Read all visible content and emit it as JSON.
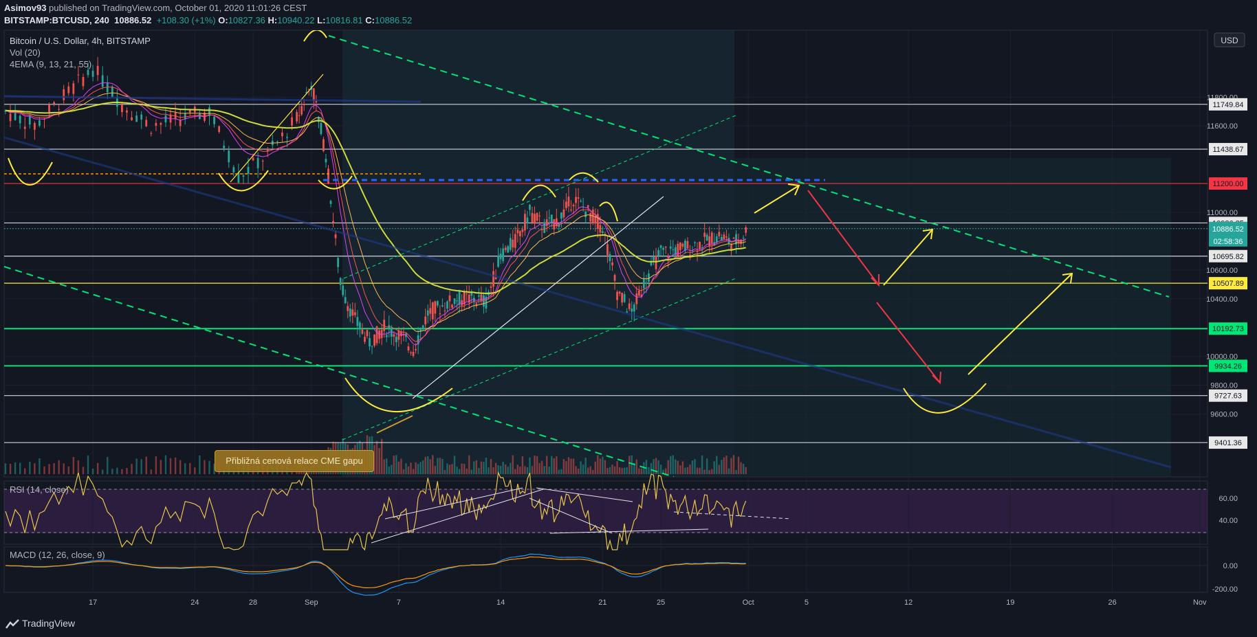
{
  "header": {
    "author": "Asimov93",
    "published_text": "published on TradingView.com, October 01, 2020 11:01:26 CEST",
    "symbol": "BITSTAMP:BTCUSD, 240",
    "last": "10886.52",
    "change": "+108.30 (+1%)",
    "o_label": "O:",
    "o": "10827.36",
    "h_label": "H:",
    "h": "10940.22",
    "l_label": "L:",
    "l": "10816.81",
    "c_label": "C:",
    "c": "10886.52"
  },
  "legend": {
    "title": "Bitcoin / U.S. Dollar, 4h, BITSTAMP",
    "vol": "Vol (20)",
    "ema": "4EMA (9, 13, 21, 55)"
  },
  "currency_button": "USD",
  "rsi_label": "RSI (14, close)",
  "macd_label": "MACD (12, 26, close, 9)",
  "cme_note": "Přibližná cenová relace CME gapu",
  "footer": "TradingView",
  "colors": {
    "bg": "#131722",
    "up": "#26a69a",
    "down": "#ef5350",
    "support": "#00e676",
    "resistance": "#f23645",
    "yellow": "#ffeb3b"
  },
  "chart_data": {
    "type": "line",
    "title": "Bitcoin / U.S. Dollar, 4h, BITSTAMP",
    "x_ticks": [
      "17",
      "24",
      "28",
      "Sep",
      "7",
      "14",
      "21",
      "25",
      "Oct",
      "5",
      "12",
      "19",
      "26",
      "Nov"
    ],
    "y_ticks": [
      9600,
      9800,
      10000,
      10400,
      10600,
      11000,
      11600,
      11800
    ],
    "ylim": [
      9380,
      12400
    ],
    "series": [
      {
        "x": [
          "Aug 11",
          "Aug 13",
          "Aug 15",
          "Aug 17",
          "Aug 19",
          "Aug 21",
          "Aug 23",
          "Aug 25",
          "Aug 27",
          "Aug 29",
          "Aug 31",
          "Sep 1",
          "Sep 2",
          "Sep 3",
          "Sep 4",
          "Sep 5",
          "Sep 6",
          "Sep 7",
          "Sep 8",
          "Sep 9",
          "Sep 10",
          "Sep 11",
          "Sep 12",
          "Sep 13",
          "Sep 14",
          "Sep 15",
          "Sep 16",
          "Sep 17",
          "Sep 18",
          "Sep 19",
          "Sep 20",
          "Sep 21",
          "Sep 22",
          "Sep 23",
          "Sep 24",
          "Sep 25",
          "Sep 26",
          "Sep 27",
          "Sep 28",
          "Sep 29",
          "Sep 30",
          "Oct 1"
        ],
        "values": [
          11700,
          11600,
          11800,
          12000,
          11750,
          11600,
          11650,
          11700,
          11250,
          11400,
          11650,
          11900,
          11400,
          10500,
          10250,
          10100,
          10200,
          10150,
          10050,
          10300,
          10350,
          10400,
          10400,
          10380,
          10700,
          10800,
          11000,
          10900,
          10950,
          11100,
          11000,
          10900,
          10450,
          10300,
          10550,
          10720,
          10740,
          10760,
          10800,
          10840,
          10780,
          10886.52
        ]
      }
    ],
    "horizontal_levels": [
      {
        "label": "11749.84",
        "value": 11749.84,
        "color": "#d1d4dc"
      },
      {
        "label": "11438.67",
        "value": 11438.67,
        "color": "#d1d4dc"
      },
      {
        "label": "11200.00",
        "value": 11200.0,
        "color": "#f23645"
      },
      {
        "label": "10926.35",
        "value": 10926.35,
        "color": "#d1d4dc"
      },
      {
        "label": "10695.82",
        "value": 10695.82,
        "color": "#d1d4dc"
      },
      {
        "label": "10507.89",
        "value": 10507.89,
        "color": "#ffeb3b"
      },
      {
        "label": "10192.73",
        "value": 10192.73,
        "color": "#00e676"
      },
      {
        "label": "9934.26",
        "value": 9934.26,
        "color": "#00e676"
      },
      {
        "label": "9727.63",
        "value": 9727.63,
        "color": "#d1d4dc"
      },
      {
        "label": "9401.36",
        "value": 9401.36,
        "color": "#d1d4dc"
      }
    ],
    "price_tag": {
      "value": "10886.52",
      "countdown": "02:58:36"
    },
    "rsi": {
      "levels": [
        60.0,
        40.0
      ],
      "labels": [
        "60.00",
        "40.00"
      ]
    },
    "macd": {
      "levels": [
        0.0,
        -200.0
      ],
      "labels": [
        "0.00",
        "-200.00"
      ]
    }
  }
}
